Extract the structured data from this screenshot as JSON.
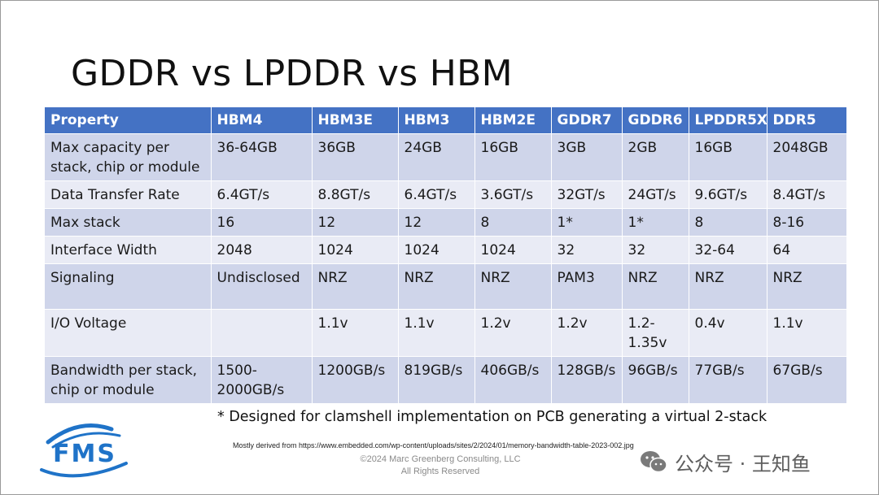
{
  "title": "GDDR vs LPDDR vs HBM",
  "table": {
    "headers": [
      "Property",
      "HBM4",
      "HBM3E",
      "HBM3",
      "HBM2E",
      "GDDR7",
      "GDDR6",
      "LPDDR5X",
      "DDR5"
    ],
    "rows": [
      [
        "Max capacity per stack, chip or module",
        "36-64GB",
        "36GB",
        "24GB",
        "16GB",
        "3GB",
        "2GB",
        "16GB",
        "2048GB"
      ],
      [
        "Data Transfer Rate",
        "6.4GT/s",
        "8.8GT/s",
        "6.4GT/s",
        "3.6GT/s",
        "32GT/s",
        "24GT/s",
        "9.6GT/s",
        "8.4GT/s"
      ],
      [
        "Max stack",
        "16",
        "12",
        "12",
        "8",
        "1*",
        "1*",
        "8",
        "8-16"
      ],
      [
        "Interface Width",
        "2048",
        "1024",
        "1024",
        "1024",
        "32",
        "32",
        "32-64",
        "64"
      ],
      [
        "Signaling",
        "Undisclosed",
        "NRZ",
        "NRZ",
        "NRZ",
        "PAM3",
        "NRZ",
        "NRZ",
        "NRZ"
      ],
      [
        "I/O Voltage",
        "",
        "1.1v",
        "1.1v",
        "1.2v",
        "1.2v",
        "1.2-1.35v",
        "0.4v",
        "1.1v"
      ],
      [
        "Bandwidth per stack, chip or module",
        "1500-2000GB/s",
        "1200GB/s",
        "819GB/s",
        "406GB/s",
        "128GB/s",
        "96GB/s",
        "77GB/s",
        "67GB/s"
      ]
    ]
  },
  "footnote": "* Designed for clamshell implementation on PCB generating a virtual 2-stack",
  "source": "Mostly derived from https://www.embedded.com/wp-content/uploads/sites/2/2024/01/memory-bandwidth-table-2023-002.jpg",
  "copyright": "©2024 Marc Greenberg Consulting, LLC",
  "rights": "All Rights Reserved",
  "logo_text": "FMS",
  "watermark": "公众号 · 王知鱼",
  "colors": {
    "header_bg": "#4472c4",
    "row_odd": "#cfd5ea",
    "row_even": "#e9ebf5",
    "logo_blue": "#1f73c8"
  }
}
